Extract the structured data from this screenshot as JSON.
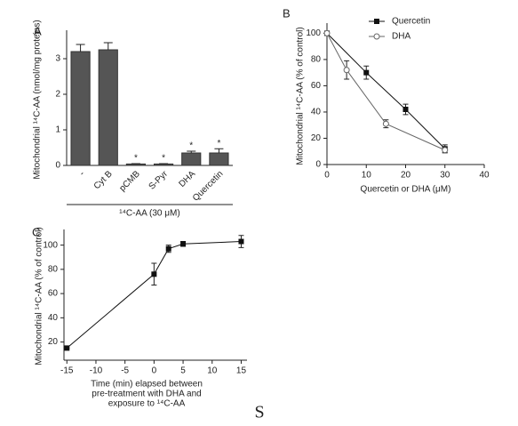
{
  "chart_data": [
    {
      "type": "bar",
      "panel_label": "A",
      "ylabel": "Mitochondrial ¹⁴C-AA (nmol/mg proteins)",
      "xlabel": "¹⁴C-AA (30 μM)",
      "categories": [
        "-",
        "Cyt B",
        "pCMB",
        "S-Pyr",
        "DHA",
        "Quercetin"
      ],
      "values": [
        3.2,
        3.25,
        0.04,
        0.04,
        0.35,
        0.35
      ],
      "errors": [
        0.2,
        0.2,
        0.01,
        0.01,
        0.05,
        0.12
      ],
      "significance": [
        null,
        null,
        "*",
        "*",
        "*",
        "*"
      ],
      "color": "#555555",
      "ylim": [
        0,
        3.7
      ],
      "yticks": [
        0,
        1,
        2,
        3
      ]
    },
    {
      "type": "line",
      "panel_label": "B",
      "ylabel": "Mitochondrial ¹⁴C-AA (% of control)",
      "xlabel": "Quercetin or DHA (μM)",
      "series": [
        {
          "name": "Quercetin",
          "color": "#111111",
          "marker": "square",
          "x": [
            0,
            10,
            20,
            30
          ],
          "values": [
            100,
            70,
            42,
            12
          ],
          "errors": [
            0,
            5,
            4,
            3
          ]
        },
        {
          "name": "DHA",
          "color": "#666666",
          "marker": "open-circle",
          "x": [
            0,
            5,
            15,
            30
          ],
          "values": [
            100,
            72,
            31,
            11
          ],
          "errors": [
            0,
            7,
            3,
            2
          ]
        }
      ],
      "legend": "upper right",
      "xlim": [
        0,
        40
      ],
      "xticks": [
        0,
        10,
        20,
        30,
        40
      ],
      "ylim": [
        0,
        105
      ],
      "yticks": [
        0,
        20,
        40,
        60,
        80,
        100
      ]
    },
    {
      "type": "line",
      "panel_label": "C",
      "ylabel": "Mitochondrial ¹⁴C-AA (% of control)",
      "xlabel": [
        "Time (min) elapsed between",
        "pre-treatment with DHA and",
        "exposure to ¹⁴C-AA"
      ],
      "series": [
        {
          "color": "#111111",
          "marker": "square",
          "x": [
            -15,
            0,
            2.5,
            5,
            15
          ],
          "values": [
            15,
            76,
            97,
            101,
            103
          ],
          "errors": [
            0,
            9,
            3,
            2,
            5
          ]
        }
      ],
      "xlim": [
        -15.5,
        16
      ],
      "xticks": [
        -15,
        -10,
        -5,
        0,
        5,
        10,
        15
      ],
      "ylim": [
        5,
        110
      ],
      "yticks": [
        20,
        40,
        60,
        80,
        100
      ]
    }
  ],
  "footer": "S"
}
